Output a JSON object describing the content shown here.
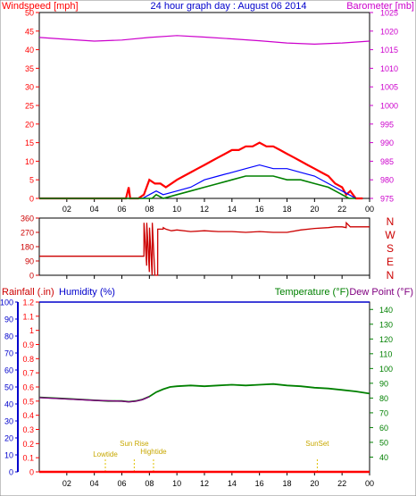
{
  "header": {
    "left_label": "Windspeed [mph]",
    "title": "24 hour graph day : August 06 2014",
    "right_label": "Barometer [mb]"
  },
  "colors": {
    "wind": "#ff0000",
    "wind_avg": "#0000ff",
    "wind_low": "#008000",
    "barometer": "#cc00cc",
    "direction": "#cc0000",
    "humidity": "#0000cc",
    "temperature": "#008000",
    "dew_point": "#800080",
    "rain": "#ff0000",
    "events": "#e0c000",
    "axes": "#000000"
  },
  "chart_data": [
    {
      "id": "wind",
      "type": "line",
      "x_label": "hour",
      "xlim": [
        0,
        24
      ],
      "x_ticks": [
        "02",
        "04",
        "06",
        "08",
        "10",
        "12",
        "14",
        "16",
        "18",
        "20",
        "22",
        "00"
      ],
      "y_left": {
        "label": "Windspeed [mph]",
        "lim": [
          0,
          50
        ],
        "ticks": [
          0,
          5,
          10,
          15,
          20,
          25,
          30,
          35,
          40,
          45,
          50
        ]
      },
      "y_right": {
        "label": "Barometer [mb]",
        "lim": [
          975,
          1025
        ],
        "ticks": [
          975,
          980,
          985,
          990,
          995,
          1000,
          1005,
          1010,
          1015,
          1020,
          1025
        ]
      },
      "series": [
        {
          "key": "gust",
          "x": [
            0,
            6.3,
            6.5,
            6.6,
            7.2,
            7.6,
            8.0,
            8.4,
            8.8,
            9.2,
            9.6,
            10.0,
            10.5,
            11.0,
            11.5,
            12.0,
            12.5,
            13.0,
            13.5,
            14.0,
            14.5,
            15.0,
            15.5,
            16.0,
            16.5,
            17.0,
            17.5,
            18.0,
            18.5,
            19.0,
            19.5,
            20.0,
            20.5,
            21.0,
            21.5,
            22.0,
            22.3,
            22.6,
            23.0,
            23.5
          ],
          "y": [
            0,
            0,
            3,
            0,
            0,
            1,
            5,
            4,
            4,
            3,
            4,
            5,
            6,
            7,
            8,
            9,
            10,
            11,
            12,
            13,
            13,
            14,
            14,
            15,
            14,
            14,
            13,
            12,
            11,
            10,
            9,
            8,
            7,
            6,
            4,
            3,
            1,
            2,
            0,
            0
          ]
        },
        {
          "key": "avg",
          "x": [
            0,
            7.5,
            8.0,
            8.5,
            9.0,
            10.0,
            11.0,
            12.0,
            13.0,
            14.0,
            15.0,
            16.0,
            17.0,
            18.0,
            19.0,
            20.0,
            21.0,
            22.0,
            22.5,
            23.0
          ],
          "y": [
            0,
            0,
            1,
            2,
            1,
            2,
            3,
            5,
            6,
            7,
            8,
            9,
            8,
            8,
            7,
            6,
            4,
            2,
            1,
            0
          ]
        },
        {
          "key": "low",
          "x": [
            0,
            8.2,
            8.5,
            9.0,
            10.0,
            11.0,
            12.0,
            13.0,
            14.0,
            15.0,
            16.0,
            17.0,
            18.0,
            19.0,
            20.0,
            21.0,
            22.0,
            22.5,
            23.0
          ],
          "y": [
            0,
            0,
            1,
            0,
            1,
            2,
            3,
            4,
            5,
            6,
            6,
            6,
            5,
            5,
            4,
            3,
            1,
            0,
            0
          ]
        },
        {
          "key": "barometer",
          "axis": "right",
          "x": [
            0,
            2,
            4,
            6,
            8,
            10,
            12,
            14,
            16,
            18,
            20,
            22,
            24
          ],
          "y": [
            1018.3,
            1017.8,
            1017.3,
            1017.6,
            1018.3,
            1018.8,
            1018.4,
            1017.9,
            1017.4,
            1016.8,
            1016.5,
            1016.8,
            1017.3
          ]
        }
      ]
    },
    {
      "id": "wind_direction",
      "type": "line",
      "xlim": [
        0,
        24
      ],
      "y_lim": [
        0,
        360
      ],
      "y_ticks": [
        0,
        90,
        180,
        270,
        360
      ],
      "compass_labels": [
        "N",
        "W",
        "S",
        "E",
        "N"
      ],
      "series": [
        {
          "key": "direction",
          "x": [
            0,
            7.6,
            7.61,
            7.8,
            7.81,
            8.0,
            8.01,
            8.2,
            8.21,
            8.4,
            8.41,
            8.6,
            8.61,
            9.0,
            9.01,
            9.2,
            9.6,
            10.0,
            11.0,
            12.0,
            13.0,
            14.0,
            15.0,
            16.0,
            17.0,
            18.0,
            19.0,
            20.0,
            21.0,
            21.5,
            22.0,
            22.3,
            22.31,
            22.6,
            22.61,
            23.0,
            24.0
          ],
          "y": [
            120,
            120,
            330,
            60,
            330,
            20,
            300,
            0,
            330,
            0,
            0,
            0,
            290,
            290,
            300,
            290,
            280,
            285,
            275,
            280,
            275,
            275,
            270,
            275,
            270,
            270,
            285,
            295,
            300,
            305,
            305,
            300,
            330,
            305,
            305,
            305,
            305
          ]
        }
      ]
    },
    {
      "id": "temperature_humidity",
      "type": "line",
      "xlim": [
        0,
        24
      ],
      "x_ticks": [
        "02",
        "04",
        "06",
        "08",
        "10",
        "12",
        "14",
        "16",
        "18",
        "20",
        "22",
        "00"
      ],
      "y_left_humidity": {
        "label": "Humidity (%)",
        "lim": [
          0,
          100
        ],
        "ticks": [
          0,
          10,
          20,
          30,
          40,
          50,
          60,
          70,
          80,
          90,
          100
        ]
      },
      "y_left_rain": {
        "label": "Rainfall (.in)",
        "lim": [
          0,
          1.2
        ],
        "ticks": [
          "0",
          "0.1",
          "0.2",
          "0.3",
          "0.4",
          "0.5",
          "0.6",
          "0.7",
          "0.8",
          "0.9",
          "1",
          "1.1",
          "1.2"
        ]
      },
      "y_right": {
        "label": "Temperature (°F)",
        "lim": [
          30,
          145
        ],
        "ticks": [
          40,
          50,
          60,
          70,
          80,
          90,
          100,
          110,
          120,
          130,
          140
        ]
      },
      "dew_point_label": "Dew Point (°F)",
      "series": [
        {
          "key": "temperature",
          "axis": "right",
          "x": [
            0,
            1,
            2,
            3,
            4,
            5,
            6,
            6.5,
            7,
            7.5,
            8,
            8.5,
            9,
            9.5,
            10,
            11,
            12,
            13,
            14,
            15,
            16,
            17,
            18,
            19,
            20,
            21,
            22,
            23,
            24
          ],
          "y": [
            80.5,
            80,
            79.5,
            79,
            78.5,
            78,
            78,
            77.5,
            78,
            79,
            81,
            84,
            86,
            87.5,
            88,
            88.5,
            88,
            88.5,
            89,
            88.5,
            89,
            89.5,
            88.5,
            88,
            87,
            86.5,
            85.5,
            84.5,
            83
          ]
        },
        {
          "key": "dew_point",
          "axis": "right",
          "x": [
            0,
            2,
            4,
            6,
            6.5,
            7,
            7.5,
            8
          ],
          "y": [
            80.3,
            79.4,
            78.4,
            77.9,
            77.4,
            77.9,
            78.9,
            80.9
          ]
        },
        {
          "key": "humidity",
          "x": [
            0,
            24
          ],
          "y": [
            100,
            100
          ]
        },
        {
          "key": "rain",
          "x": [
            0,
            24
          ],
          "y": [
            0,
            0
          ]
        }
      ],
      "annotations": [
        {
          "label": "Lowtide",
          "x": 4.8
        },
        {
          "label": "Sun Rise",
          "x": 6.9
        },
        {
          "label": "Hightide",
          "x": 8.3
        },
        {
          "label": "SunSet",
          "x": 20.2
        }
      ]
    }
  ]
}
